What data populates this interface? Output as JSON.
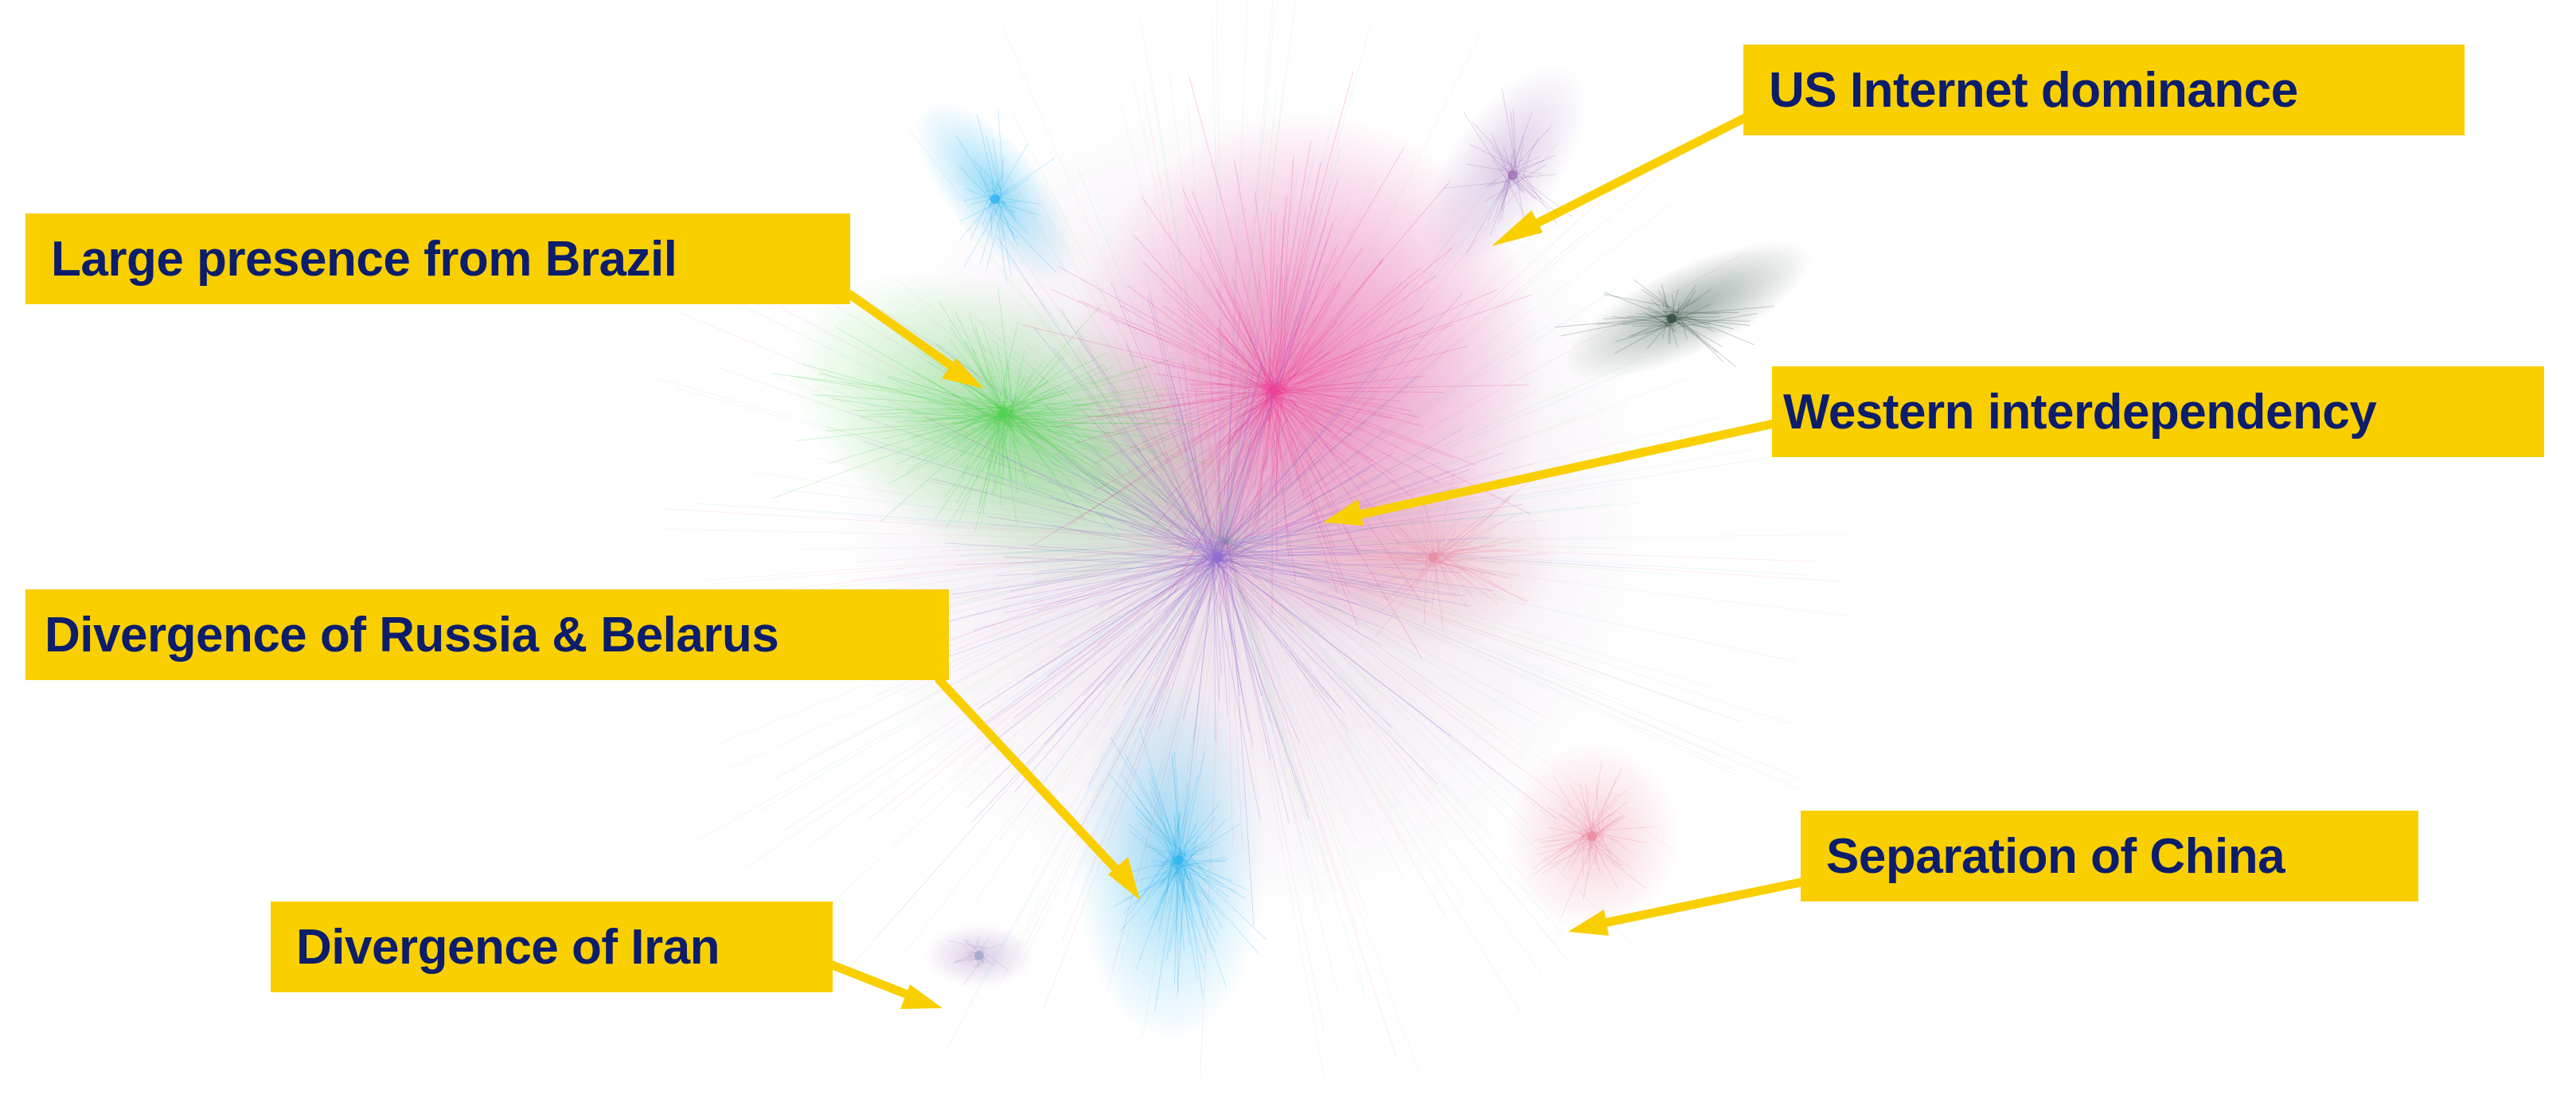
{
  "colors": {
    "label_background": "#F9CF00",
    "label_text": "#0C1D6B",
    "arrow": "#F9CF00",
    "cluster_us": "#9B6FB6",
    "cluster_brazil": "#4FD14F",
    "cluster_western": "#EE3F96",
    "cluster_russia": "#8F6DD1",
    "cluster_china": "#E88AA1",
    "cluster_iran": "#9FA7C8",
    "cluster_blue": "#2FB4EE",
    "cluster_dark": "#2F4A3E"
  },
  "annotations": [
    {
      "id": "us",
      "text": "US Internet dominance"
    },
    {
      "id": "brazil",
      "text": "Large presence from Brazil"
    },
    {
      "id": "western",
      "text": "Western interdependency"
    },
    {
      "id": "russia",
      "text": "Divergence of Russia & Belarus"
    },
    {
      "id": "china",
      "text": "Separation of China"
    },
    {
      "id": "iran",
      "text": "Divergence of Iran"
    }
  ]
}
